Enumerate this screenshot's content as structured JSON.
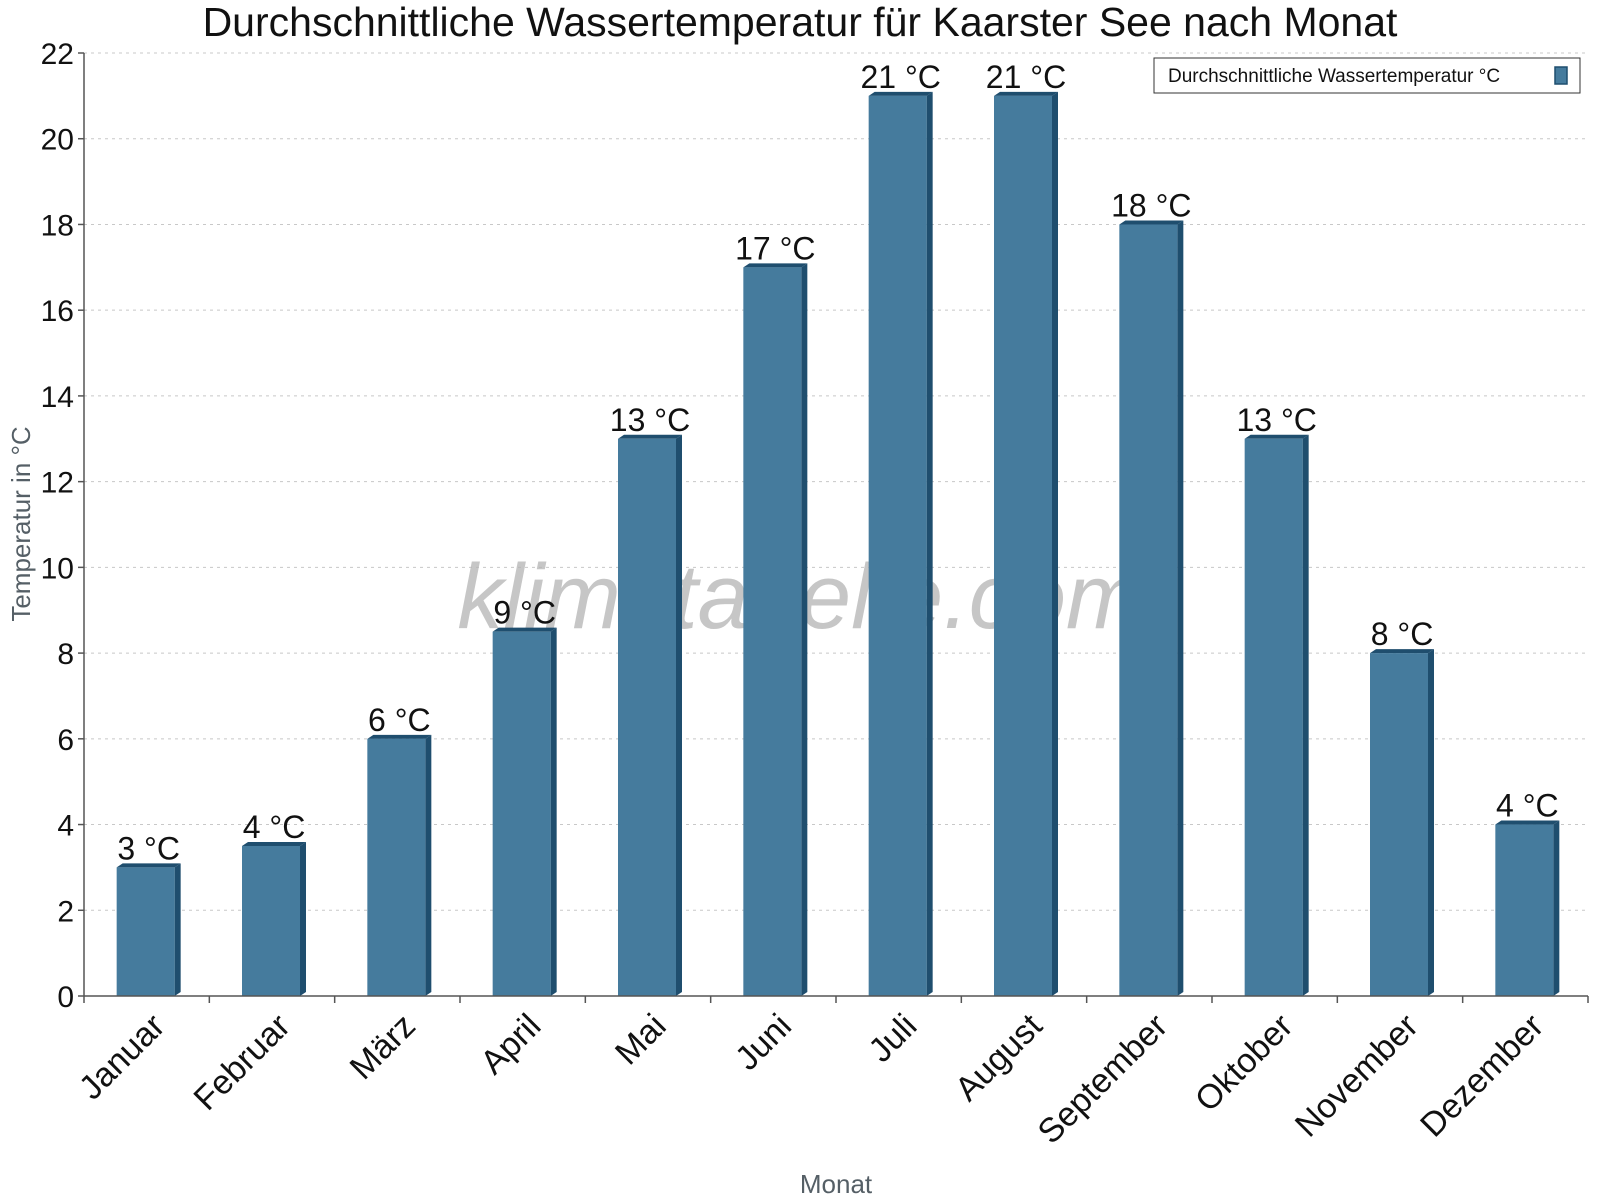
{
  "chart_data": {
    "type": "bar",
    "title": "Durchschnittliche Wassertemperatur für Kaarster See nach Monat",
    "xlabel": "Monat",
    "ylabel": "Temperatur in °C",
    "ylim": [
      0,
      22
    ],
    "yticks": [
      0,
      2,
      4,
      6,
      8,
      10,
      12,
      14,
      16,
      18,
      20,
      22
    ],
    "grid": true,
    "legend_position": "top-right",
    "categories": [
      "Januar",
      "Februar",
      "März",
      "April",
      "Mai",
      "Juni",
      "Juli",
      "August",
      "September",
      "Oktober",
      "November",
      "Dezember"
    ],
    "series": [
      {
        "name": "Durchschnittliche Wassertemperatur °C",
        "color": "#457b9d",
        "side_color": "#1f4e6e",
        "values": [
          3,
          3.5,
          6,
          8.5,
          13,
          17,
          21,
          21,
          18,
          13,
          8,
          4
        ],
        "labels": [
          "3 °C",
          "4 °C",
          "6 °C",
          "9 °C",
          "13 °C",
          "17 °C",
          "21 °C",
          "21 °C",
          "18 °C",
          "13 °C",
          "8 °C",
          "4 °C"
        ]
      }
    ]
  },
  "watermark": "klimatabelle.com"
}
